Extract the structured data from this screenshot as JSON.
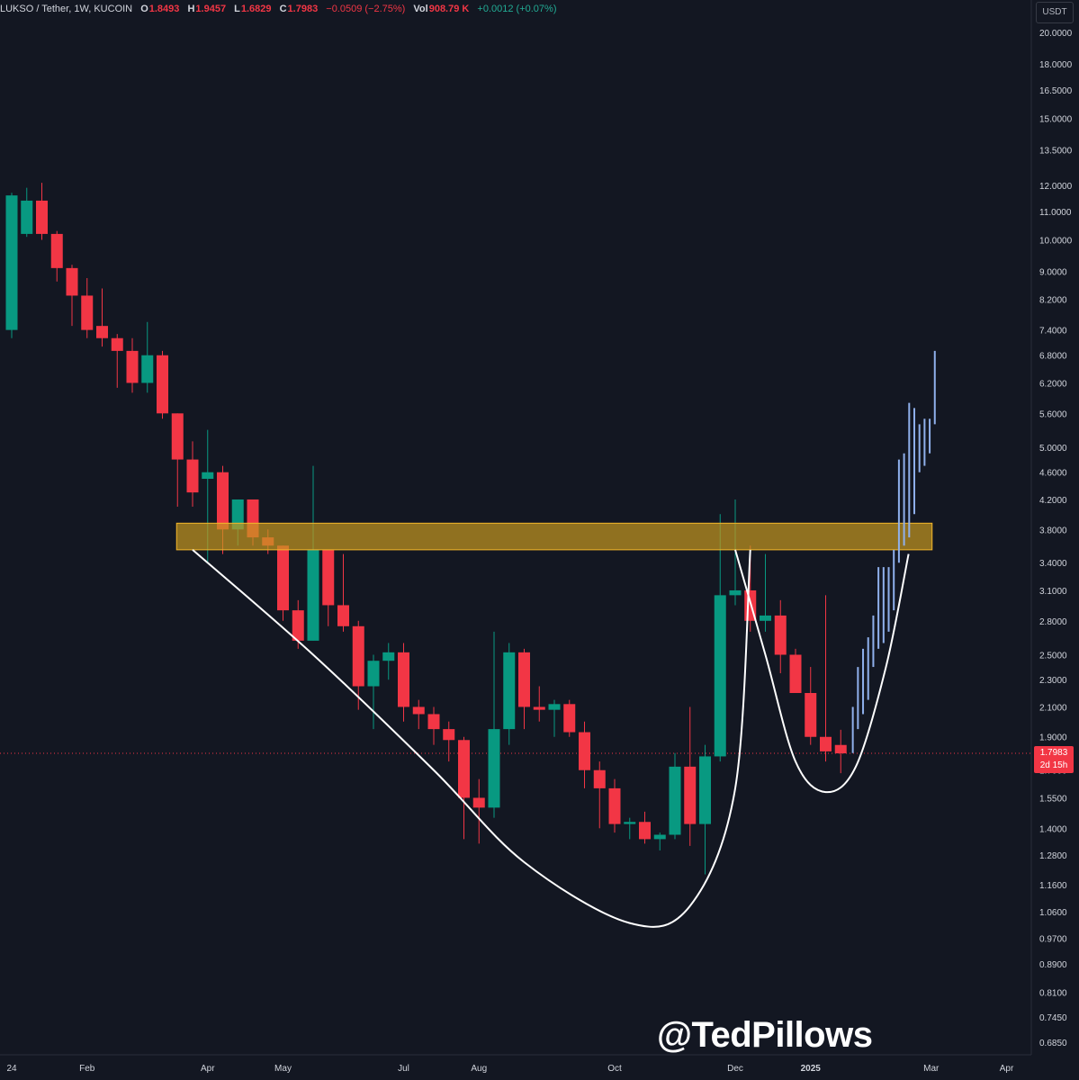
{
  "header": {
    "symbol": "LUKSO / Tether, 1W, KUCOIN",
    "o_label": "O",
    "o_value": "1.8493",
    "h_label": "H",
    "h_value": "1.9457",
    "l_label": "L",
    "l_value": "1.6829",
    "c_label": "C",
    "c_value": "1.7983",
    "change": "−0.0509 (−2.75%)",
    "vol_label": "Vol",
    "vol_value": "908.79 K",
    "vol_change": "+0.0012 (+0.07%)"
  },
  "currency_button": "USDT",
  "current_price": {
    "price": "1.7983",
    "countdown": "2d 15h"
  },
  "watermark": "@TedPillows",
  "colors": {
    "up": "#089981",
    "down": "#f23645",
    "zone": "#f5b82a",
    "projection": "#8fb0ec",
    "curve": "#ffffff",
    "background": "#131722"
  },
  "chart_data": {
    "type": "candlestick",
    "scale": "log",
    "ylim": [
      0.63,
      22
    ],
    "y_ticks": [
      "20.0000",
      "18.0000",
      "16.5000",
      "15.0000",
      "13.5000",
      "12.0000",
      "11.0000",
      "10.0000",
      "9.0000",
      "8.2000",
      "7.4000",
      "6.8000",
      "6.2000",
      "5.6000",
      "5.0000",
      "4.6000",
      "4.2000",
      "3.8000",
      "3.4000",
      "3.1000",
      "2.8000",
      "2.5000",
      "2.3000",
      "2.1000",
      "1.9000",
      "1.7000",
      "1.5500",
      "1.4000",
      "1.2800",
      "1.1600",
      "1.0600",
      "0.9700",
      "0.8900",
      "0.8100",
      "0.7450",
      "0.6850"
    ],
    "x_labels": [
      {
        "week": 0,
        "label": "24"
      },
      {
        "week": 5,
        "label": "Feb"
      },
      {
        "week": 13,
        "label": "Apr"
      },
      {
        "week": 18,
        "label": "May"
      },
      {
        "week": 26,
        "label": "Jul"
      },
      {
        "week": 31,
        "label": "Aug"
      },
      {
        "week": 40,
        "label": "Oct"
      },
      {
        "week": 48,
        "label": "Dec"
      },
      {
        "week": 53,
        "label": "2025"
      },
      {
        "week": 61,
        "label": "Mar"
      },
      {
        "week": 66,
        "label": "Apr"
      }
    ],
    "candles": [
      {
        "o": 7.4,
        "h": 11.7,
        "l": 7.2,
        "c": 11.6
      },
      {
        "o": 10.2,
        "h": 11.9,
        "l": 10.1,
        "c": 11.4
      },
      {
        "o": 11.4,
        "h": 12.1,
        "l": 10.0,
        "c": 10.2
      },
      {
        "o": 10.2,
        "h": 10.3,
        "l": 8.7,
        "c": 9.1
      },
      {
        "o": 9.1,
        "h": 9.2,
        "l": 7.5,
        "c": 8.3
      },
      {
        "o": 8.3,
        "h": 8.8,
        "l": 7.2,
        "c": 7.4
      },
      {
        "o": 7.5,
        "h": 8.5,
        "l": 7.0,
        "c": 7.2
      },
      {
        "o": 7.2,
        "h": 7.3,
        "l": 6.1,
        "c": 6.9
      },
      {
        "o": 6.9,
        "h": 7.2,
        "l": 6.0,
        "c": 6.2
      },
      {
        "o": 6.2,
        "h": 7.6,
        "l": 6.0,
        "c": 6.8
      },
      {
        "o": 6.8,
        "h": 6.9,
        "l": 5.5,
        "c": 5.6
      },
      {
        "o": 5.6,
        "h": 5.6,
        "l": 4.1,
        "c": 4.8
      },
      {
        "o": 4.8,
        "h": 5.1,
        "l": 4.1,
        "c": 4.3
      },
      {
        "o": 4.5,
        "h": 5.3,
        "l": 3.4,
        "c": 4.6
      },
      {
        "o": 4.6,
        "h": 4.7,
        "l": 3.5,
        "c": 3.8
      },
      {
        "o": 3.8,
        "h": 4.2,
        "l": 3.6,
        "c": 4.2
      },
      {
        "o": 4.2,
        "h": 4.2,
        "l": 3.6,
        "c": 3.7
      },
      {
        "o": 3.7,
        "h": 3.8,
        "l": 3.5,
        "c": 3.6
      },
      {
        "o": 3.6,
        "h": 3.6,
        "l": 2.8,
        "c": 2.9
      },
      {
        "o": 2.9,
        "h": 3.0,
        "l": 2.55,
        "c": 2.62
      },
      {
        "o": 2.62,
        "h": 4.7,
        "l": 2.62,
        "c": 3.55
      },
      {
        "o": 3.55,
        "h": 3.55,
        "l": 2.75,
        "c": 2.95
      },
      {
        "o": 2.95,
        "h": 3.5,
        "l": 2.7,
        "c": 2.75
      },
      {
        "o": 2.75,
        "h": 2.8,
        "l": 2.08,
        "c": 2.25
      },
      {
        "o": 2.25,
        "h": 2.5,
        "l": 1.95,
        "c": 2.45
      },
      {
        "o": 2.45,
        "h": 2.6,
        "l": 2.3,
        "c": 2.52
      },
      {
        "o": 2.52,
        "h": 2.6,
        "l": 2.0,
        "c": 2.1
      },
      {
        "o": 2.1,
        "h": 2.15,
        "l": 1.95,
        "c": 2.05
      },
      {
        "o": 2.05,
        "h": 2.1,
        "l": 1.85,
        "c": 1.95
      },
      {
        "o": 1.95,
        "h": 2.0,
        "l": 1.75,
        "c": 1.88
      },
      {
        "o": 1.88,
        "h": 1.9,
        "l": 1.35,
        "c": 1.55
      },
      {
        "o": 1.55,
        "h": 1.65,
        "l": 1.33,
        "c": 1.5
      },
      {
        "o": 1.5,
        "h": 2.7,
        "l": 1.45,
        "c": 1.95
      },
      {
        "o": 1.95,
        "h": 2.6,
        "l": 1.85,
        "c": 2.52
      },
      {
        "o": 2.52,
        "h": 2.55,
        "l": 1.95,
        "c": 2.1
      },
      {
        "o": 2.1,
        "h": 2.25,
        "l": 2.0,
        "c": 2.08
      },
      {
        "o": 2.08,
        "h": 2.15,
        "l": 1.9,
        "c": 2.12
      },
      {
        "o": 2.12,
        "h": 2.15,
        "l": 1.9,
        "c": 1.93
      },
      {
        "o": 1.93,
        "h": 2.0,
        "l": 1.6,
        "c": 1.7
      },
      {
        "o": 1.7,
        "h": 1.75,
        "l": 1.4,
        "c": 1.6
      },
      {
        "o": 1.6,
        "h": 1.65,
        "l": 1.38,
        "c": 1.42
      },
      {
        "o": 1.42,
        "h": 1.45,
        "l": 1.35,
        "c": 1.43
      },
      {
        "o": 1.43,
        "h": 1.48,
        "l": 1.33,
        "c": 1.35
      },
      {
        "o": 1.35,
        "h": 1.38,
        "l": 1.3,
        "c": 1.37
      },
      {
        "o": 1.37,
        "h": 1.8,
        "l": 1.35,
        "c": 1.72
      },
      {
        "o": 1.72,
        "h": 2.1,
        "l": 1.32,
        "c": 1.42
      },
      {
        "o": 1.42,
        "h": 1.85,
        "l": 1.2,
        "c": 1.78
      },
      {
        "o": 1.78,
        "h": 4.0,
        "l": 1.75,
        "c": 3.05
      },
      {
        "o": 3.05,
        "h": 4.2,
        "l": 2.95,
        "c": 3.1
      },
      {
        "o": 3.1,
        "h": 3.6,
        "l": 2.7,
        "c": 2.8
      },
      {
        "o": 2.8,
        "h": 3.5,
        "l": 2.7,
        "c": 2.85
      },
      {
        "o": 2.85,
        "h": 3.0,
        "l": 2.35,
        "c": 2.5
      },
      {
        "o": 2.5,
        "h": 2.55,
        "l": 2.2,
        "c": 2.2
      },
      {
        "o": 2.2,
        "h": 2.4,
        "l": 1.85,
        "c": 1.9
      },
      {
        "o": 1.9,
        "h": 3.05,
        "l": 1.75,
        "c": 1.81
      },
      {
        "o": 1.8493,
        "h": 1.9457,
        "l": 1.6829,
        "c": 1.7983
      }
    ],
    "resistance_zone": {
      "x0": 11,
      "x1": 61,
      "low": 3.55,
      "high": 3.88
    },
    "projection_bars": [
      {
        "low": 1.8,
        "high": 2.1
      },
      {
        "low": 1.95,
        "high": 2.4
      },
      {
        "low": 2.05,
        "high": 2.55
      },
      {
        "low": 2.15,
        "high": 2.65
      },
      {
        "low": 2.4,
        "high": 2.85
      },
      {
        "low": 2.55,
        "high": 3.35
      },
      {
        "low": 2.6,
        "high": 3.35
      },
      {
        "low": 2.7,
        "high": 3.35
      },
      {
        "low": 2.9,
        "high": 3.55
      },
      {
        "low": 3.4,
        "high": 4.8
      },
      {
        "low": 3.6,
        "high": 4.9
      },
      {
        "low": 3.7,
        "high": 5.8
      },
      {
        "low": 4.0,
        "high": 5.7
      },
      {
        "low": 4.6,
        "high": 5.4
      },
      {
        "low": 4.7,
        "high": 5.5
      },
      {
        "low": 4.9,
        "high": 5.5
      },
      {
        "low": 5.4,
        "high": 6.9
      }
    ],
    "cup_curves": [
      {
        "points": [
          [
            12,
            3.55
          ],
          [
            20,
            2.5
          ],
          [
            28,
            1.7
          ],
          [
            34,
            1.25
          ],
          [
            41,
            1.02
          ],
          [
            45,
            1.08
          ],
          [
            48,
            1.6
          ],
          [
            49,
            3.55
          ]
        ]
      },
      {
        "points": [
          [
            48,
            3.55
          ],
          [
            50,
            2.5
          ],
          [
            52,
            1.75
          ],
          [
            54,
            1.58
          ],
          [
            56,
            1.72
          ],
          [
            58,
            2.4
          ],
          [
            59.5,
            3.5
          ]
        ]
      }
    ]
  }
}
